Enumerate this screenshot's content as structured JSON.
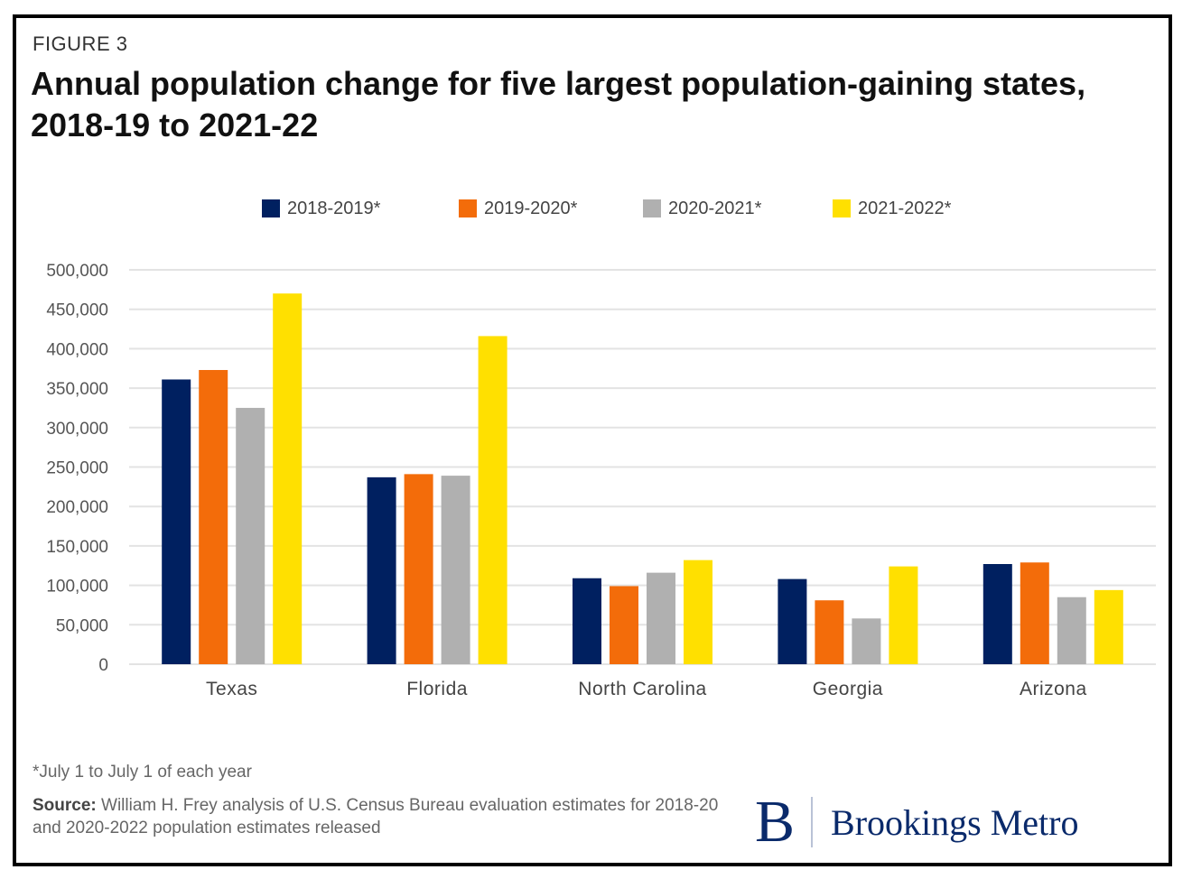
{
  "header": {
    "figure_label": "FIGURE 3",
    "title": "Annual population change for five largest population-gaining states, 2018-19 to 2021-22"
  },
  "chart_data": {
    "type": "bar",
    "title": "Annual population change for five largest population-gaining states, 2018-19 to 2021-22",
    "xlabel": "",
    "ylabel": "",
    "categories": [
      "Texas",
      "Florida",
      "North Carolina",
      "Georgia",
      "Arizona"
    ],
    "series": [
      {
        "name": "2018-2019*",
        "color": "#002060",
        "values": [
          361000,
          237000,
          109000,
          108000,
          127000
        ]
      },
      {
        "name": "2019-2020*",
        "color": "#f36c0a",
        "values": [
          373000,
          241000,
          99000,
          81000,
          129000
        ]
      },
      {
        "name": "2020-2021*",
        "color": "#b0b0b0",
        "values": [
          325000,
          239000,
          116000,
          58000,
          85000
        ]
      },
      {
        "name": "2021-2022*",
        "color": "#ffe000",
        "values": [
          470000,
          416000,
          132000,
          124000,
          94000
        ]
      }
    ],
    "ylim": [
      0,
      500000
    ],
    "yticks": [
      0,
      50000,
      100000,
      150000,
      200000,
      250000,
      300000,
      350000,
      400000,
      450000,
      500000
    ],
    "ytick_labels": [
      "0",
      "50,000",
      "100,000",
      "150,000",
      "200,000",
      "250,000",
      "300,000",
      "350,000",
      "400,000",
      "450,000",
      "500,000"
    ],
    "grid": true,
    "legend_position": "top"
  },
  "footer": {
    "footnote": "*July 1 to July 1 of each year",
    "source_label": "Source:",
    "source_text": " William H. Frey analysis of U.S. Census Bureau evaluation estimates for 2018-20 and 2020-2022 population estimates released",
    "logo_mark": "B",
    "logo_text": "Brookings Metro"
  }
}
